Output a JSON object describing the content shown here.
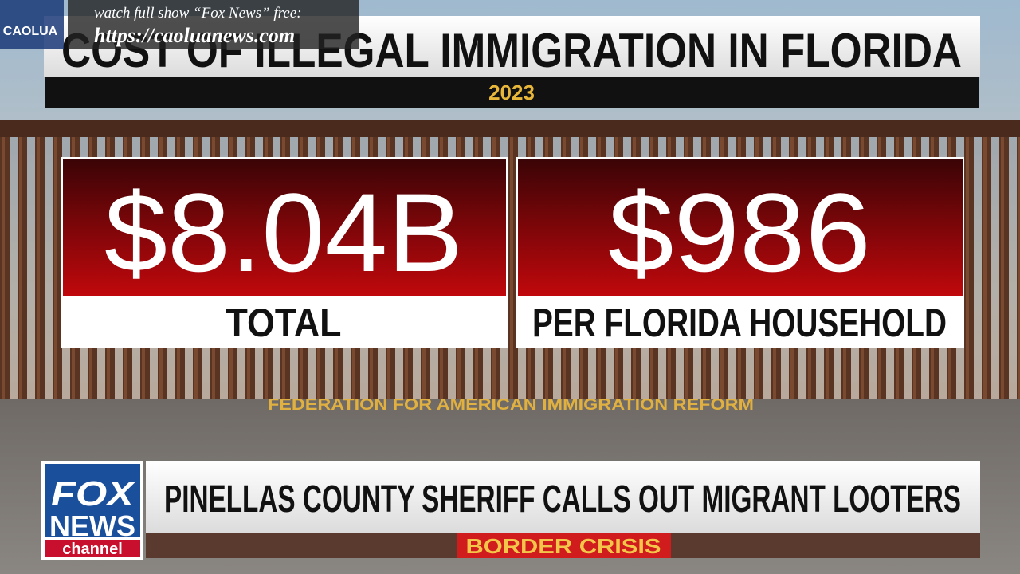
{
  "watermark": {
    "logo": "CAOLUA",
    "line1": "watch full show “Fox News” free:",
    "line2": "https://caoluanews.com"
  },
  "graphic": {
    "title": "COST OF ILLEGAL IMMIGRATION IN FLORIDA",
    "year": "2023",
    "stats": [
      {
        "value": "$8.04B",
        "label": "TOTAL"
      },
      {
        "value": "$986",
        "label": "PER FLORIDA HOUSEHOLD"
      }
    ],
    "source": "FEDERATION FOR AMERICAN IMMIGRATION REFORM"
  },
  "lower_third": {
    "logo": [
      "FOX",
      "NEWS",
      "channel"
    ],
    "headline": "PINELLAS COUNTY SHERIFF CALLS OUT MIGRANT LOOTERS",
    "tag": "BORDER CRISIS"
  }
}
